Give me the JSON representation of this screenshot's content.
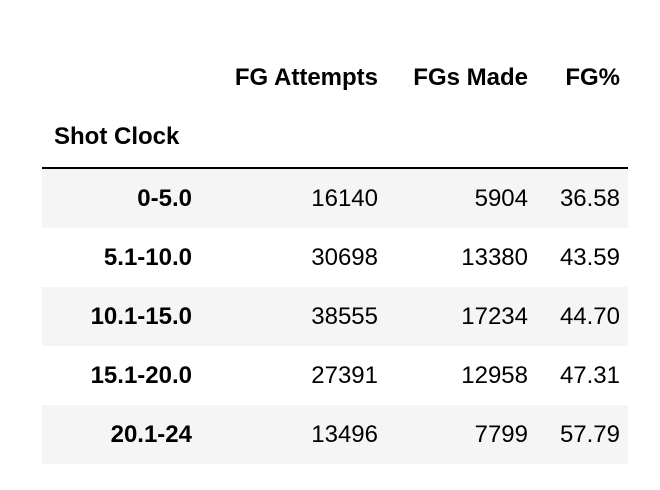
{
  "table": {
    "columns": [
      "FG Attempts",
      "FGs Made",
      "FG%"
    ],
    "index_name": "Shot Clock",
    "rows": [
      {
        "label": "0-5.0",
        "fg_attempts": "16140",
        "fgs_made": "5904",
        "fg_pct": "36.58"
      },
      {
        "label": "5.1-10.0",
        "fg_attempts": "30698",
        "fgs_made": "13380",
        "fg_pct": "43.59"
      },
      {
        "label": "10.1-15.0",
        "fg_attempts": "38555",
        "fgs_made": "17234",
        "fg_pct": "44.70"
      },
      {
        "label": "15.1-20.0",
        "fg_attempts": "27391",
        "fgs_made": "12958",
        "fg_pct": "47.31"
      },
      {
        "label": "20.1-24",
        "fg_attempts": "13496",
        "fgs_made": "7799",
        "fg_pct": "57.79"
      }
    ]
  }
}
